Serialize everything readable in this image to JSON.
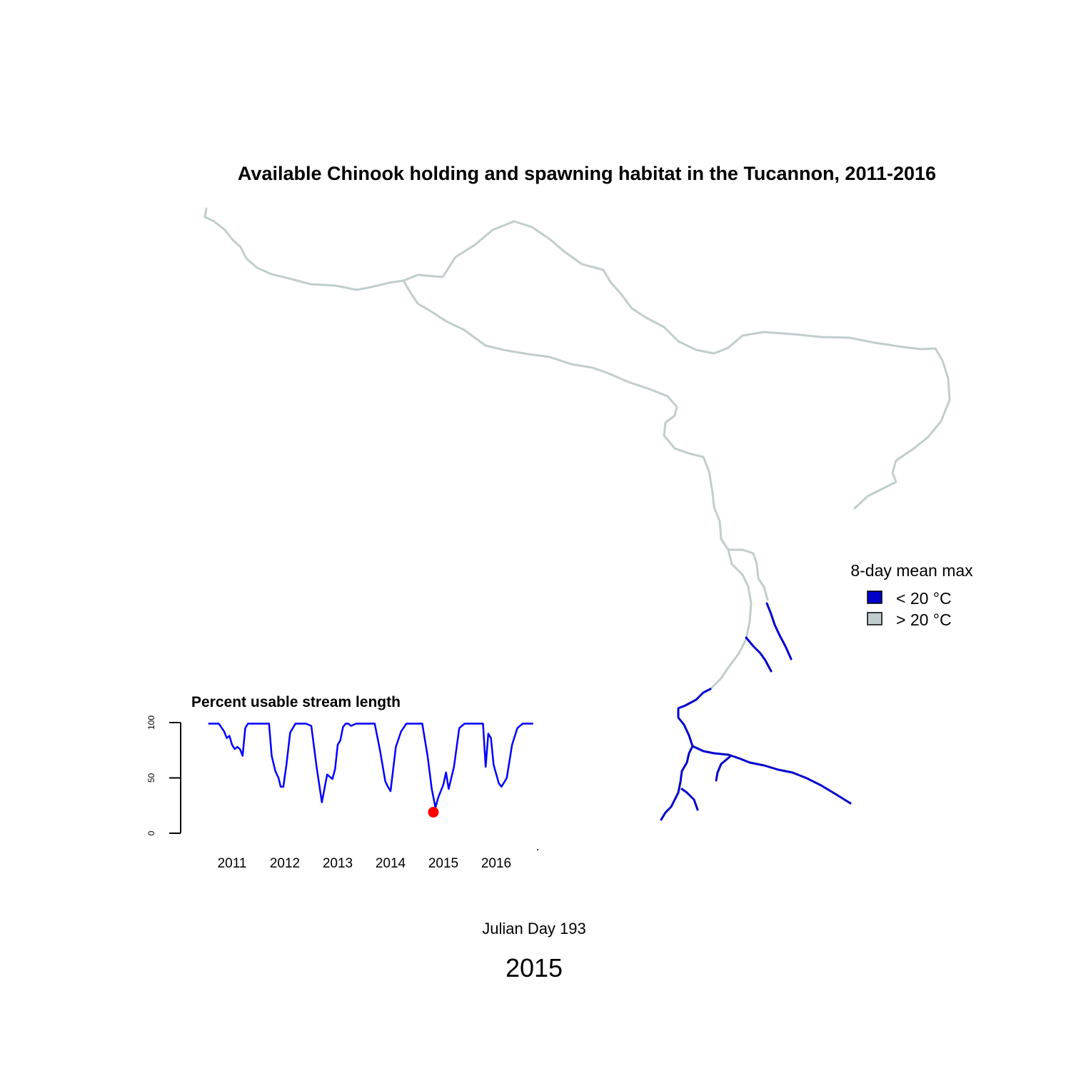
{
  "title": "Available Chinook holding and spawning habitat in the Tucannon, 2011-2016",
  "legend": {
    "title": "8-day mean max",
    "items": [
      {
        "label": "< 20 °C",
        "color": "#0000cd"
      },
      {
        "label": "> 20 °C",
        "color": "#c1cdcd"
      }
    ]
  },
  "map": {
    "cool_color": "#0000cd",
    "warm_color": "#c1cdcd"
  },
  "julian_day_label": "Julian Day 193",
  "year_label": "2015",
  "chart_data": {
    "type": "line",
    "title": "Percent usable stream length",
    "xlabel": "",
    "ylabel": "",
    "ylim": [
      0,
      100
    ],
    "yticks": [
      "0",
      "50",
      "100"
    ],
    "xticks": [
      "2011",
      "2012",
      "2013",
      "2014",
      "2015",
      "2016"
    ],
    "line_color": "#0000ff",
    "marker_color": "#ff0000",
    "series": [
      {
        "x": [
          2010.55,
          2010.75,
          2010.85,
          2010.9,
          2010.95,
          2011.0,
          2011.05,
          2011.1,
          2011.15,
          2011.2,
          2011.25,
          2011.3,
          2011.4,
          2011.5,
          2011.6,
          2011.7,
          2011.75,
          2011.82,
          2011.88,
          2011.92,
          2011.97,
          2012.03,
          2012.1,
          2012.2,
          2012.3,
          2012.4,
          2012.5,
          2012.6,
          2012.7,
          2012.8,
          2012.9,
          2012.95,
          2013.0,
          2013.05,
          2013.1,
          2013.15,
          2013.2,
          2013.25,
          2013.35,
          2013.5,
          2013.7,
          2013.8,
          2013.9,
          2013.95,
          2014.0,
          2014.05,
          2014.1,
          2014.2,
          2014.3,
          2014.4,
          2014.5,
          2014.6,
          2014.7,
          2014.78,
          2014.85,
          2014.9,
          2014.95,
          2015.0,
          2015.05,
          2015.1,
          2015.2,
          2015.3,
          2015.4,
          2015.5,
          2015.6,
          2015.75,
          2015.8,
          2015.85,
          2015.9,
          2015.95,
          2016.05,
          2016.1,
          2016.2,
          2016.3,
          2016.4,
          2016.5,
          2016.7
        ],
        "y": [
          99,
          99,
          92,
          86,
          88,
          80,
          76,
          78,
          76,
          70,
          95,
          99,
          99,
          99,
          99,
          99,
          70,
          56,
          50,
          42,
          42,
          62,
          91,
          99,
          99,
          99,
          97,
          60,
          28,
          53,
          49,
          58,
          80,
          84,
          96,
          99,
          99,
          97,
          99,
          99,
          99,
          75,
          47,
          42,
          38,
          58,
          78,
          92,
          99,
          99,
          99,
          99,
          70,
          40,
          23,
          32,
          38,
          44,
          55,
          40,
          60,
          95,
          99,
          99,
          99,
          99,
          60,
          90,
          86,
          62,
          45,
          42,
          50,
          80,
          95,
          99,
          99
        ]
      }
    ],
    "marker": {
      "x": 2014.81,
      "y": 19
    }
  }
}
